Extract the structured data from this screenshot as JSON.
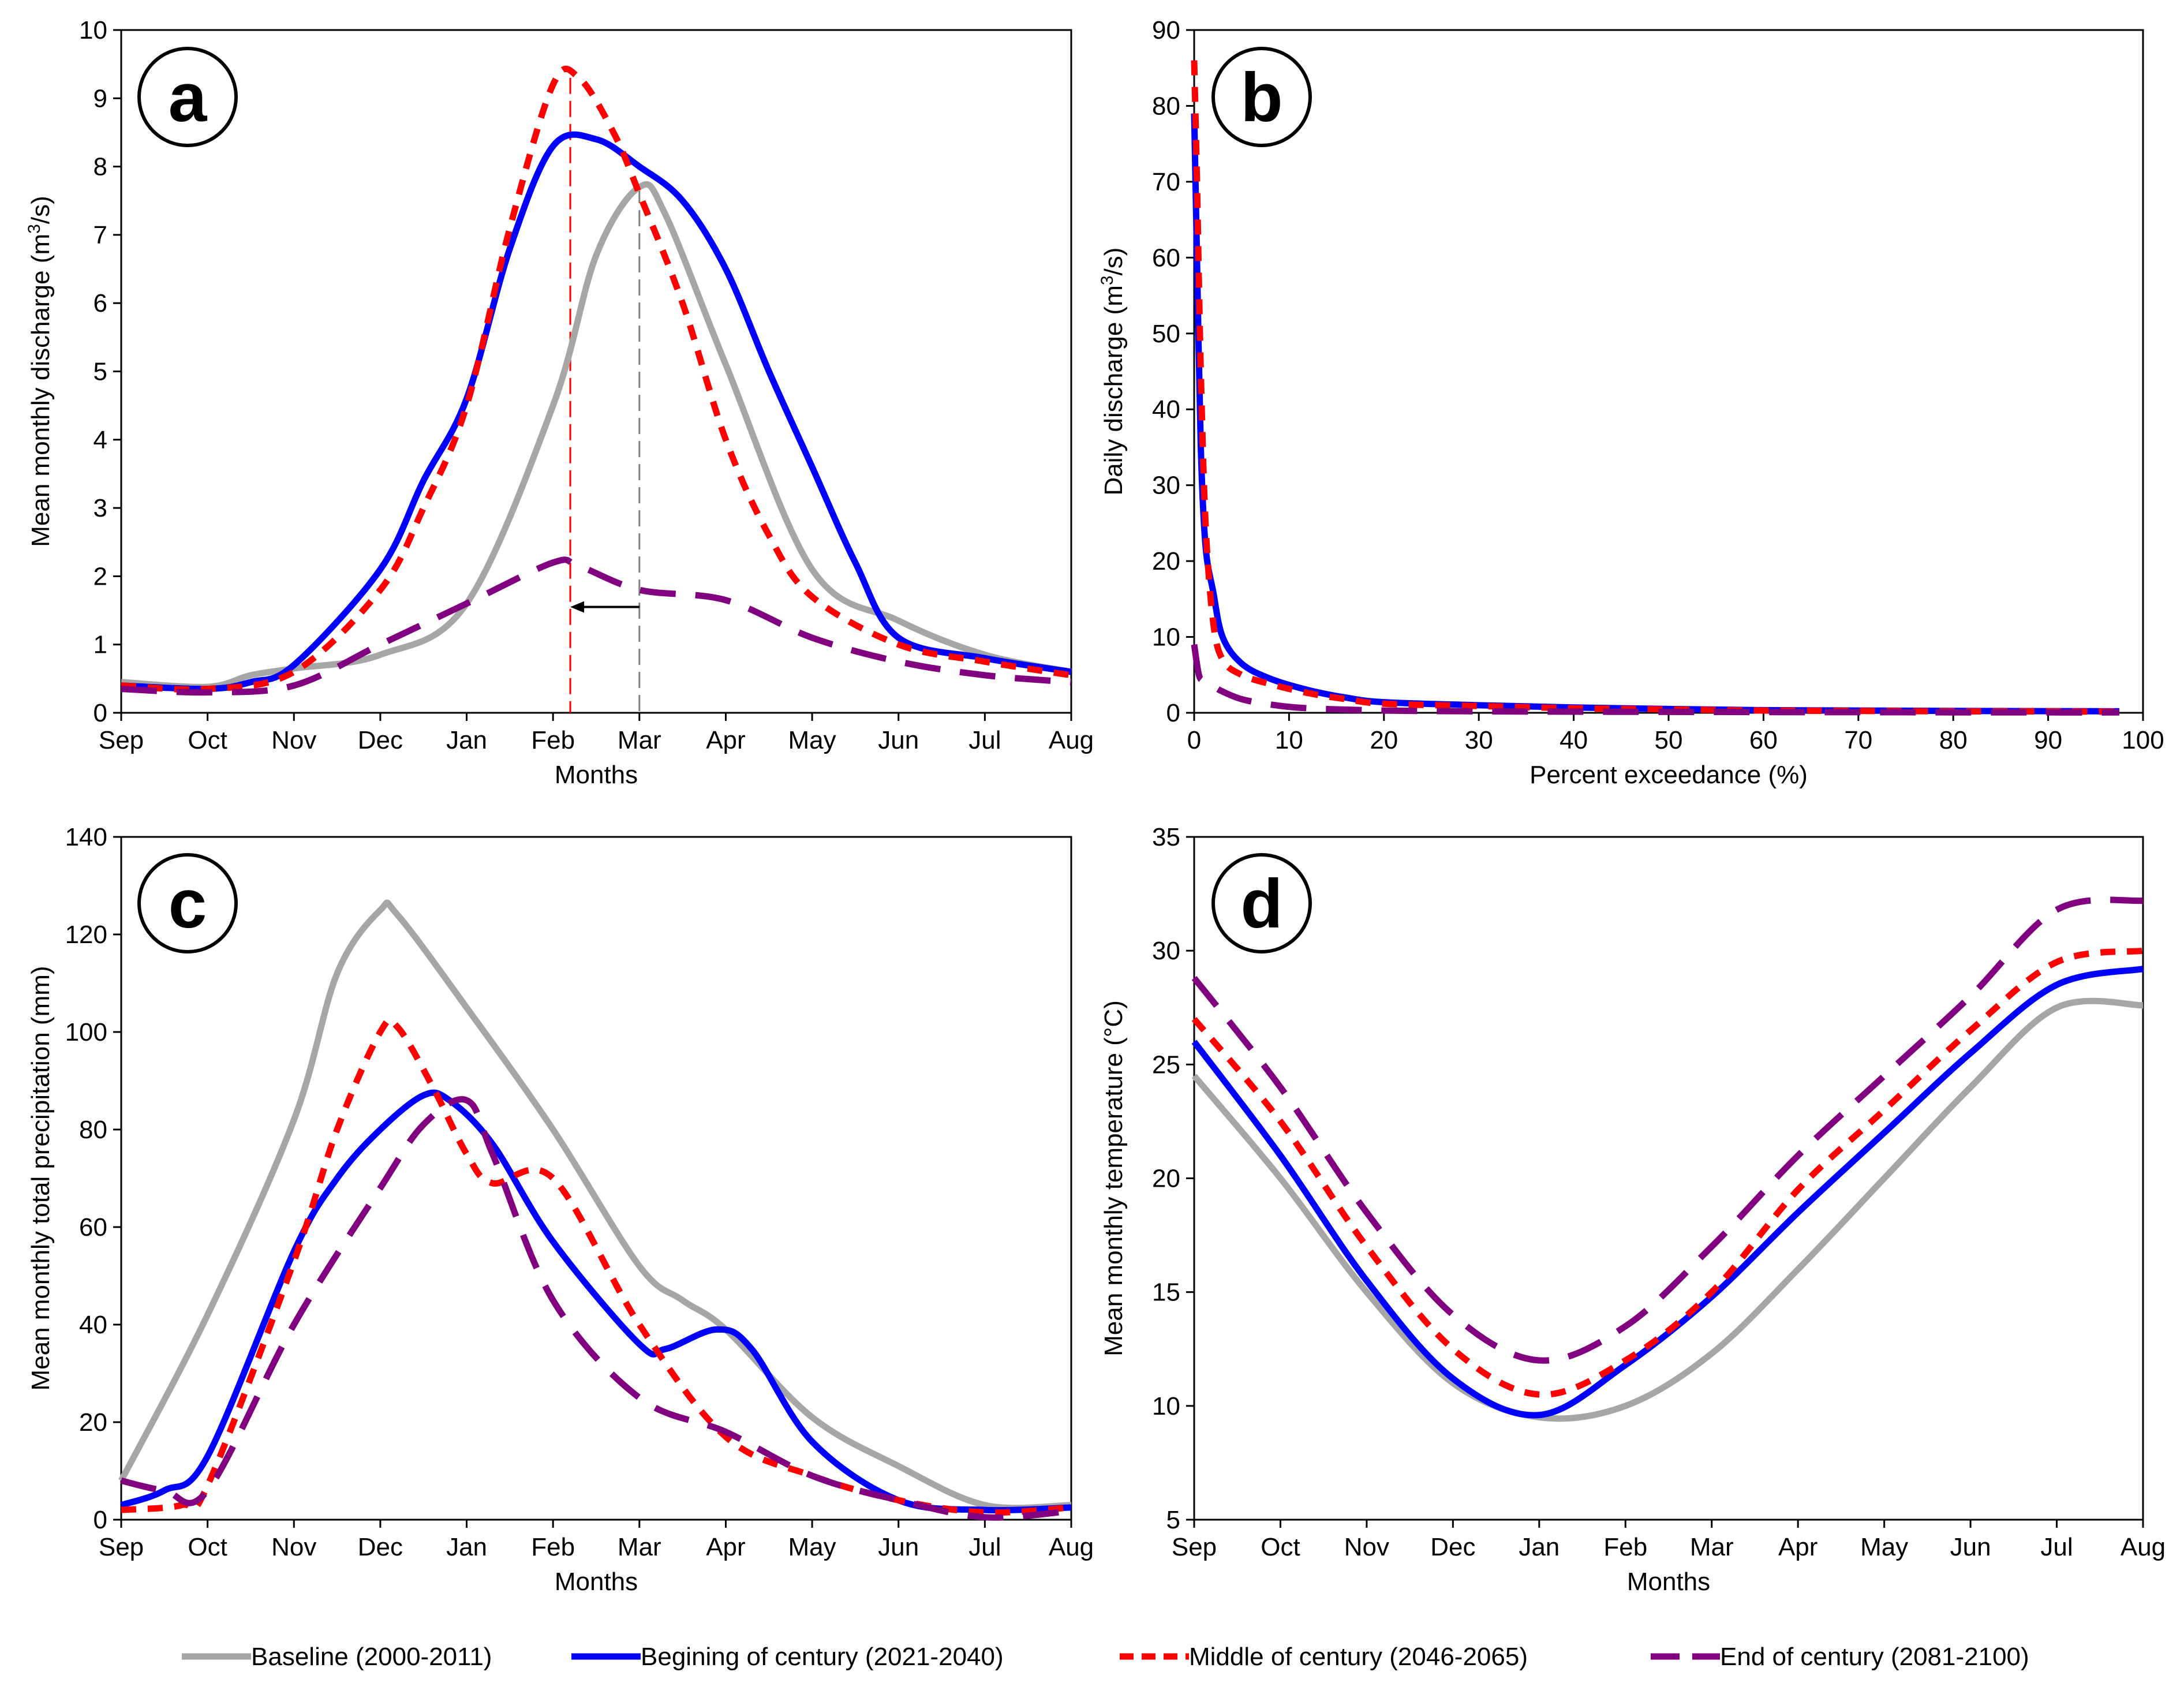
{
  "legend": [
    {
      "key": "baseline",
      "label": "Baseline (2000-2011)",
      "color": "#a6a6a6",
      "dash": "solid"
    },
    {
      "key": "begin",
      "label": "Begining of century (2021-2040)",
      "color": "#0000ff",
      "dash": "solid"
    },
    {
      "key": "middle",
      "label": "Middle of century (2046-2065)",
      "color": "#ff0000",
      "dash": "short"
    },
    {
      "key": "end",
      "label": "End of century (2081-2100)",
      "color": "#800080",
      "dash": "long"
    }
  ],
  "chart_data": [
    {
      "id": "a",
      "letter": "a",
      "type": "line",
      "xlabel": "Months",
      "ylabel_main": "Mean monthly discharge (m",
      "ylabel_sup": "3",
      "ylabel_tail": "/s)",
      "categories": [
        "Sep",
        "Oct",
        "Nov",
        "Dec",
        "Jan",
        "Feb",
        "Mar",
        "Apr",
        "May",
        "Jun",
        "Jul",
        "Aug"
      ],
      "xlim": [
        0,
        11
      ],
      "ylim": [
        0,
        10
      ],
      "yticks": [
        0,
        1,
        2,
        3,
        4,
        5,
        6,
        7,
        8,
        9,
        10
      ],
      "series": [
        {
          "key": "baseline",
          "x": [
            0,
            1,
            1.5,
            2,
            3,
            4,
            5,
            5.5,
            6,
            6.3,
            7,
            8,
            9,
            10,
            11
          ],
          "y": [
            0.45,
            0.38,
            0.55,
            0.65,
            0.85,
            1.6,
            4.5,
            6.7,
            7.7,
            7.3,
            5.1,
            2.1,
            1.35,
            0.85,
            0.6
          ]
        },
        {
          "key": "begin",
          "x": [
            0,
            1,
            1.5,
            2,
            3,
            3.5,
            4,
            4.5,
            5,
            5.5,
            6,
            6.5,
            7,
            7.5,
            8,
            8.5,
            9,
            10,
            11
          ],
          "y": [
            0.4,
            0.35,
            0.45,
            0.7,
            2.1,
            3.4,
            4.6,
            6.8,
            8.3,
            8.4,
            8.0,
            7.5,
            6.5,
            5.0,
            3.6,
            2.2,
            1.1,
            0.8,
            0.6
          ]
        },
        {
          "key": "middle",
          "x": [
            0,
            1,
            2,
            3,
            3.5,
            4,
            4.5,
            5,
            5.3,
            5.7,
            6,
            6.5,
            7,
            7.5,
            8,
            9,
            10,
            11
          ],
          "y": [
            0.4,
            0.35,
            0.6,
            1.8,
            3.0,
            4.5,
            7.1,
            9.2,
            9.3,
            8.5,
            7.6,
            6.0,
            4.0,
            2.6,
            1.7,
            1.0,
            0.75,
            0.55
          ]
        },
        {
          "key": "end",
          "x": [
            0,
            1,
            2,
            3,
            4,
            5,
            5.3,
            6,
            7,
            8,
            9,
            10,
            11
          ],
          "y": [
            0.35,
            0.3,
            0.4,
            1.0,
            1.6,
            2.2,
            2.15,
            1.8,
            1.65,
            1.1,
            0.75,
            0.55,
            0.45
          ]
        }
      ],
      "annotations": {
        "shift_from_x": 6,
        "shift_to_x": 5.2,
        "shift_y": 1.55,
        "vline_middle_x": 5.2,
        "vline_baseline_x": 6,
        "vline_middle_color": "#ff0000",
        "vline_baseline_color": "#808080"
      }
    },
    {
      "id": "b",
      "letter": "b",
      "type": "line",
      "xlabel": "Percent exceedance (%)",
      "ylabel_main": "Daily discharge (m",
      "ylabel_sup": "3",
      "ylabel_tail": "/s)",
      "xlim": [
        0,
        100
      ],
      "ylim": [
        0,
        90
      ],
      "xticks": [
        0,
        10,
        20,
        30,
        40,
        50,
        60,
        70,
        80,
        90,
        100
      ],
      "yticks": [
        0,
        10,
        20,
        30,
        40,
        50,
        60,
        70,
        80,
        90
      ],
      "series": [
        {
          "key": "begin",
          "x": [
            0,
            0.3,
            0.7,
            1.2,
            2,
            3,
            5,
            8,
            12,
            16,
            20,
            30,
            40,
            50,
            60,
            70,
            80,
            90,
            97.5
          ],
          "y": [
            79,
            60,
            35,
            22,
            16,
            10,
            6.5,
            4.5,
            3.0,
            2.0,
            1.4,
            1.0,
            0.7,
            0.5,
            0.35,
            0.3,
            0.25,
            0.22,
            0.2
          ]
        },
        {
          "key": "middle",
          "x": [
            0,
            0.3,
            0.7,
            1.2,
            2,
            3,
            5,
            8,
            12,
            16,
            20,
            30,
            40,
            50,
            60,
            70,
            80,
            90,
            97.5
          ],
          "y": [
            86,
            70,
            45,
            25,
            12,
            7,
            5,
            3.8,
            2.6,
            1.8,
            1.2,
            0.9,
            0.6,
            0.45,
            0.3,
            0.25,
            0.2,
            0.18,
            0.15
          ]
        },
        {
          "key": "end",
          "x": [
            0,
            0.5,
            1,
            2,
            3,
            5,
            8,
            12,
            20,
            30,
            40,
            50,
            60,
            70,
            80,
            90,
            97.5
          ],
          "y": [
            9,
            5,
            4.2,
            3.5,
            2.8,
            1.8,
            1.1,
            0.6,
            0.3,
            0.2,
            0.15,
            0.12,
            0.1,
            0.08,
            0.06,
            0.05,
            0.05
          ]
        }
      ]
    },
    {
      "id": "c",
      "letter": "c",
      "type": "line",
      "xlabel": "Months",
      "ylabel_main": "Mean monthly total precipitation (mm)",
      "categories": [
        "Sep",
        "Oct",
        "Nov",
        "Dec",
        "Jan",
        "Feb",
        "Mar",
        "Apr",
        "May",
        "Jun",
        "Jul",
        "Aug"
      ],
      "xlim": [
        0,
        11
      ],
      "ylim": [
        0,
        140
      ],
      "yticks": [
        0,
        20,
        40,
        60,
        80,
        100,
        120,
        140
      ],
      "series": [
        {
          "key": "baseline",
          "x": [
            0,
            1,
            2,
            2.5,
            3,
            3.2,
            4,
            5,
            6,
            6.5,
            7,
            8,
            9,
            10,
            11
          ],
          "y": [
            8,
            42,
            82,
            112,
            125,
            124,
            105,
            80,
            52,
            45,
            39,
            21,
            11,
            3,
            3
          ]
        },
        {
          "key": "begin",
          "x": [
            0,
            0.5,
            1,
            2,
            2.5,
            3,
            3.5,
            3.8,
            4.3,
            5,
            6,
            6.3,
            6.9,
            7.3,
            8,
            9,
            10,
            11
          ],
          "y": [
            3,
            6,
            13,
            55,
            70,
            80,
            87,
            86,
            77,
            57,
            36,
            35,
            39,
            35,
            16,
            4,
            2,
            2.5
          ]
        },
        {
          "key": "middle",
          "x": [
            0,
            0.7,
            1,
            2,
            2.5,
            3,
            3.2,
            3.6,
            4,
            4.3,
            5,
            6,
            7,
            8,
            9,
            10,
            11
          ],
          "y": [
            2,
            3,
            7,
            53,
            80,
            100,
            101,
            89,
            75,
            69,
            70,
            40,
            17,
            9,
            4,
            1.5,
            2.5
          ]
        },
        {
          "key": "end",
          "x": [
            0,
            0.5,
            1,
            2,
            3,
            3.5,
            4,
            4.3,
            5,
            6,
            7,
            8,
            9,
            10,
            11
          ],
          "y": [
            8,
            6,
            6,
            40,
            68,
            81,
            86,
            75,
            45,
            25,
            18,
            9,
            4,
            0.5,
            1.8
          ]
        }
      ]
    },
    {
      "id": "d",
      "letter": "d",
      "type": "line",
      "xlabel": "Months",
      "ylabel_main": "Mean monthly temperature (°C)",
      "categories": [
        "Sep",
        "Oct",
        "Nov",
        "Dec",
        "Jan",
        "Feb",
        "Mar",
        "Apr",
        "May",
        "Jun",
        "Jul",
        "Aug"
      ],
      "xlim": [
        0,
        11
      ],
      "ylim": [
        5,
        35
      ],
      "yticks": [
        5,
        10,
        15,
        20,
        25,
        30,
        35
      ],
      "series": [
        {
          "key": "baseline",
          "x": [
            0,
            1,
            2,
            3,
            4,
            5,
            6,
            7,
            8,
            9,
            10,
            11
          ],
          "y": [
            24.5,
            20,
            15,
            11,
            9.5,
            10,
            12.3,
            16,
            20,
            24,
            27.5,
            27.6
          ]
        },
        {
          "key": "begin",
          "x": [
            0,
            1,
            2,
            3,
            4,
            5,
            6,
            7,
            8,
            9,
            10,
            11
          ],
          "y": [
            26,
            21,
            15.5,
            11.2,
            9.6,
            11.8,
            14.8,
            18.5,
            22,
            25.5,
            28.5,
            29.2
          ]
        },
        {
          "key": "middle",
          "x": [
            0,
            1,
            2,
            3,
            4,
            5,
            6,
            7,
            8,
            9,
            10,
            11
          ],
          "y": [
            27,
            22.5,
            17,
            12.5,
            10.5,
            12,
            15,
            19.5,
            23,
            26.5,
            29.5,
            30
          ]
        },
        {
          "key": "end",
          "x": [
            0,
            1,
            2,
            3,
            4,
            5,
            6,
            7,
            8,
            9,
            10,
            11
          ],
          "y": [
            28.8,
            24,
            18.5,
            14,
            12,
            13.5,
            17,
            21,
            24.5,
            28,
            31.8,
            32.2
          ]
        }
      ]
    }
  ]
}
